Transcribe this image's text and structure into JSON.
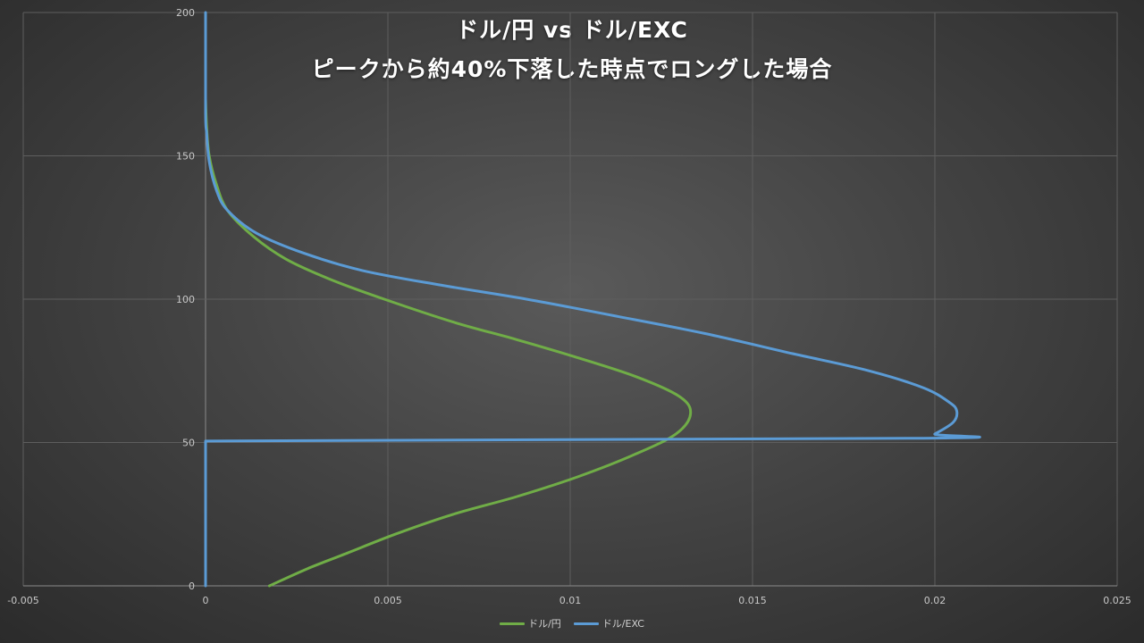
{
  "chart_data": {
    "type": "scatter",
    "title": "ドル/円 vs ドル/EXC",
    "subtitle": "ピークから約40%下落した時点でロングした場合",
    "xlabel": "",
    "ylabel": "",
    "xlim": [
      -0.005,
      0.025
    ],
    "ylim": [
      0,
      200
    ],
    "x_ticks": [
      "-0.005",
      "0",
      "0.005",
      "0.01",
      "0.015",
      "0.02",
      "0.025"
    ],
    "y_ticks": [
      "0",
      "50",
      "100",
      "150",
      "200"
    ],
    "grid": true,
    "legend_position": "bottom",
    "series": [
      {
        "name": "ドル/円",
        "color": "#70ad47",
        "points": [
          [
            0.00175,
            0
          ],
          [
            0.0028,
            6
          ],
          [
            0.0038,
            11
          ],
          [
            0.0052,
            18
          ],
          [
            0.0068,
            25
          ],
          [
            0.0085,
            31
          ],
          [
            0.0102,
            38
          ],
          [
            0.0118,
            46
          ],
          [
            0.0129,
            53
          ],
          [
            0.0133,
            60
          ],
          [
            0.013,
            66
          ],
          [
            0.0118,
            73
          ],
          [
            0.0101,
            80
          ],
          [
            0.0085,
            86
          ],
          [
            0.0068,
            92
          ],
          [
            0.0049,
            100
          ],
          [
            0.0034,
            107
          ],
          [
            0.0022,
            114
          ],
          [
            0.0013,
            122
          ],
          [
            0.0006,
            131
          ],
          [
            0.0003,
            140
          ],
          [
            0.0001,
            150
          ],
          [
            3e-05,
            160
          ],
          [
            0.0,
            170
          ]
        ]
      },
      {
        "name": "ドル/EXC",
        "color": "#5b9bd5",
        "points": [
          [
            0.0,
            0
          ],
          [
            0.0,
            50
          ],
          [
            0.0,
            50.5
          ],
          [
            0.0197,
            51.5
          ],
          [
            0.02,
            53
          ],
          [
            0.0205,
            57
          ],
          [
            0.0206,
            61
          ],
          [
            0.0204,
            64
          ],
          [
            0.0197,
            69
          ],
          [
            0.0182,
            75
          ],
          [
            0.0161,
            81
          ],
          [
            0.0137,
            88
          ],
          [
            0.0113,
            94
          ],
          [
            0.0088,
            100
          ],
          [
            0.0064,
            105
          ],
          [
            0.0043,
            110
          ],
          [
            0.0027,
            116
          ],
          [
            0.0014,
            123
          ],
          [
            0.0006,
            131
          ],
          [
            0.0003,
            138
          ],
          [
            0.0001,
            148
          ],
          [
            3e-05,
            158
          ],
          [
            0.0,
            165
          ],
          [
            0.0,
            200
          ]
        ]
      }
    ]
  }
}
